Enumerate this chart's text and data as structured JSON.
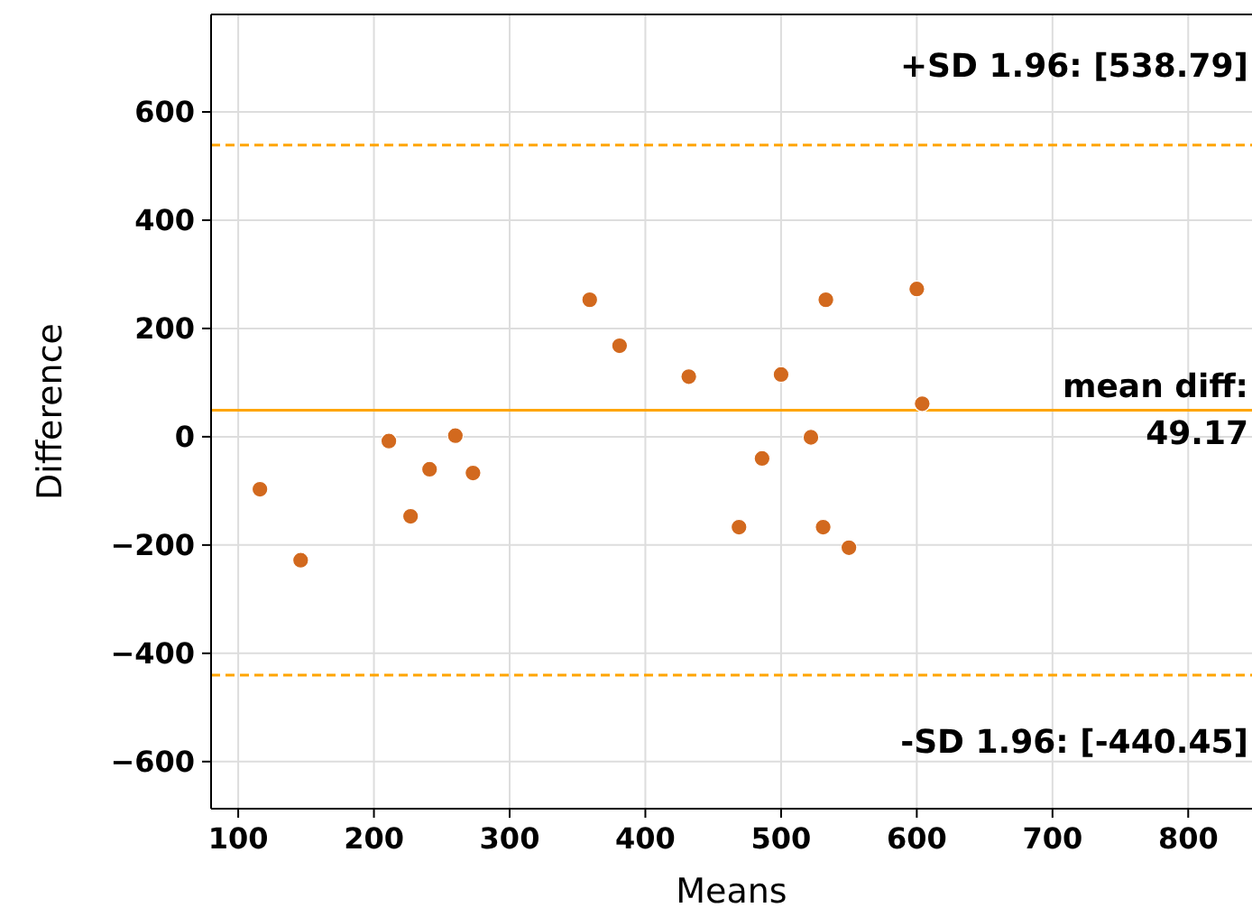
{
  "chart_data": {
    "type": "scatter",
    "xlabel": "Means",
    "ylabel": "Difference",
    "x": [
      116,
      146,
      211,
      227,
      241,
      260,
      273,
      359,
      381,
      432,
      469,
      486,
      500,
      522,
      531,
      533,
      550,
      600,
      604
    ],
    "series": [
      {
        "color": "#d2691e",
        "values": [
          -97,
          -228,
          -8,
          -147,
          -60,
          2,
          -67,
          253,
          168,
          111,
          -167,
          -40,
          115,
          -1,
          -167,
          253,
          -205,
          273,
          61
        ]
      }
    ],
    "xlim": [
      80,
      847
    ],
    "ylim": [
      -687,
      780
    ],
    "xticks": [
      100,
      200,
      300,
      400,
      500,
      600,
      700,
      800
    ],
    "yticks": [
      -600,
      -400,
      -200,
      0,
      200,
      400,
      600
    ],
    "grid": true,
    "marker": "circle",
    "ref_lines": [
      {
        "axis": "y",
        "value": 538.79,
        "label": "+SD 1.96: [538.79]",
        "color": "#ffa500",
        "line_style": "dashed"
      },
      {
        "axis": "y",
        "value": 49.17,
        "label": "mean diff:\n49.17",
        "color": "#ffa500",
        "line_style": "solid"
      },
      {
        "axis": "y",
        "value": -440.45,
        "label": "-SD 1.96: [-440.45]",
        "color": "#ffa500",
        "line_style": "dashed"
      }
    ]
  }
}
